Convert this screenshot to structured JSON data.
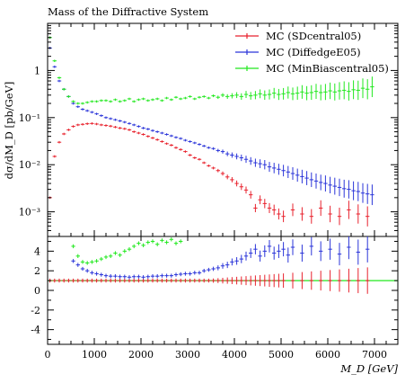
{
  "chart_data": {
    "type": "scatter",
    "title": "Mass of the Diffractive System",
    "xlabel": "M_D [GeV]",
    "ylabel": "dσ/dM_D [pb/GeV]",
    "xlim": [
      0,
      7500
    ],
    "ylim_main": [
      0.0003,
      10
    ],
    "y_scale_main": "log",
    "ylim_ratio": [
      -5.5,
      5.5
    ],
    "grid": false,
    "legend_position": "top-right",
    "x_ticks": [
      0,
      1000,
      2000,
      3000,
      4000,
      5000,
      6000,
      7000
    ],
    "x_tick_labels": [
      "0",
      "1000",
      "2000",
      "3000",
      "4000",
      "5000",
      "6000",
      "7000"
    ],
    "y_ticks_main": [
      0.001,
      0.01,
      0.1,
      1
    ],
    "y_tick_labels_main": [
      "10⁻³",
      "10⁻²",
      "10⁻¹",
      "1"
    ],
    "y_ticks_ratio": [
      -4,
      -2,
      0,
      2,
      4
    ],
    "y_tick_labels_ratio": [
      "-4",
      "-2",
      "0",
      "2",
      "4"
    ],
    "series": [
      {
        "name": "MC (SDcentral05)",
        "color": "#e8222d",
        "x": [
          50,
          150,
          250,
          350,
          450,
          550,
          650,
          750,
          850,
          950,
          1050,
          1150,
          1250,
          1350,
          1450,
          1550,
          1650,
          1750,
          1850,
          1950,
          2050,
          2150,
          2250,
          2350,
          2450,
          2550,
          2650,
          2750,
          2850,
          2950,
          3050,
          3150,
          3250,
          3350,
          3450,
          3550,
          3650,
          3750,
          3850,
          3950,
          4050,
          4150,
          4250,
          4350,
          4450,
          4550,
          4650,
          4750,
          4850,
          4950,
          5050,
          5250,
          5450,
          5650,
          5850,
          6050,
          6250,
          6450,
          6650,
          6850
        ],
        "y": [
          0.002,
          0.015,
          0.03,
          0.045,
          0.055,
          0.065,
          0.07,
          0.072,
          0.074,
          0.075,
          0.073,
          0.07,
          0.068,
          0.066,
          0.063,
          0.06,
          0.058,
          0.055,
          0.05,
          0.047,
          0.044,
          0.04,
          0.037,
          0.034,
          0.031,
          0.028,
          0.026,
          0.023,
          0.021,
          0.019,
          0.016,
          0.014,
          0.013,
          0.011,
          0.0095,
          0.0085,
          0.0075,
          0.0065,
          0.0055,
          0.0048,
          0.004,
          0.0034,
          0.0029,
          0.0023,
          0.0012,
          0.0018,
          0.0015,
          0.0012,
          0.0011,
          0.0009,
          0.0008,
          0.0011,
          0.0009,
          0.0008,
          0.0012,
          0.0009,
          0.0008,
          0.0011,
          0.0009,
          0.0008
        ]
      },
      {
        "name": "MC (DiffedgeE05)",
        "color": "#2b35d9",
        "x": [
          50,
          150,
          250,
          350,
          450,
          550,
          650,
          750,
          850,
          950,
          1050,
          1150,
          1250,
          1350,
          1450,
          1550,
          1650,
          1750,
          1850,
          1950,
          2050,
          2150,
          2250,
          2350,
          2450,
          2550,
          2650,
          2750,
          2850,
          2950,
          3050,
          3150,
          3250,
          3350,
          3450,
          3550,
          3650,
          3750,
          3850,
          3950,
          4050,
          4150,
          4250,
          4350,
          4450,
          4550,
          4650,
          4750,
          4850,
          4950,
          5050,
          5150,
          5250,
          5350,
          5450,
          5550,
          5650,
          5750,
          5850,
          5950,
          6050,
          6150,
          6250,
          6350,
          6450,
          6550,
          6650,
          6750,
          6850,
          6950
        ],
        "y": [
          3.0,
          1.2,
          0.6,
          0.4,
          0.28,
          0.2,
          0.17,
          0.15,
          0.14,
          0.13,
          0.12,
          0.11,
          0.1,
          0.095,
          0.09,
          0.085,
          0.08,
          0.075,
          0.07,
          0.065,
          0.06,
          0.057,
          0.053,
          0.05,
          0.047,
          0.044,
          0.041,
          0.038,
          0.036,
          0.033,
          0.031,
          0.029,
          0.027,
          0.025,
          0.023,
          0.022,
          0.02,
          0.019,
          0.017,
          0.016,
          0.015,
          0.014,
          0.013,
          0.012,
          0.011,
          0.0105,
          0.01,
          0.009,
          0.0085,
          0.008,
          0.0075,
          0.007,
          0.0065,
          0.006,
          0.0056,
          0.0052,
          0.0048,
          0.0045,
          0.0042,
          0.004,
          0.0037,
          0.0035,
          0.0033,
          0.0031,
          0.003,
          0.0028,
          0.0027,
          0.0025,
          0.0024,
          0.0023
        ]
      },
      {
        "name": "MC (MinBiascentral05)",
        "color": "#22e81f",
        "x": [
          50,
          150,
          250,
          350,
          450,
          550,
          650,
          750,
          850,
          950,
          1050,
          1150,
          1250,
          1350,
          1450,
          1550,
          1650,
          1750,
          1850,
          1950,
          2050,
          2150,
          2250,
          2350,
          2450,
          2550,
          2650,
          2750,
          2850,
          2950,
          3050,
          3150,
          3250,
          3350,
          3450,
          3550,
          3650,
          3750,
          3850,
          3950,
          4050,
          4150,
          4250,
          4350,
          4450,
          4550,
          4650,
          4750,
          4850,
          4950,
          5050,
          5150,
          5250,
          5350,
          5450,
          5550,
          5650,
          5750,
          5850,
          5950,
          6050,
          6150,
          6250,
          6350,
          6450,
          6550,
          6650,
          6750,
          6850,
          6950
        ],
        "y": [
          5.0,
          1.6,
          0.7,
          0.4,
          0.28,
          0.22,
          0.2,
          0.2,
          0.21,
          0.22,
          0.22,
          0.23,
          0.23,
          0.22,
          0.24,
          0.22,
          0.23,
          0.25,
          0.22,
          0.24,
          0.25,
          0.23,
          0.24,
          0.25,
          0.23,
          0.26,
          0.24,
          0.27,
          0.25,
          0.26,
          0.28,
          0.25,
          0.27,
          0.28,
          0.26,
          0.29,
          0.27,
          0.3,
          0.28,
          0.29,
          0.3,
          0.28,
          0.31,
          0.29,
          0.3,
          0.32,
          0.3,
          0.31,
          0.33,
          0.31,
          0.32,
          0.34,
          0.32,
          0.33,
          0.35,
          0.33,
          0.34,
          0.36,
          0.34,
          0.35,
          0.37,
          0.35,
          0.37,
          0.38,
          0.36,
          0.39,
          0.38,
          0.42,
          0.4,
          0.45
        ]
      }
    ],
    "ratio_series": [
      {
        "name": "MC (SDcentral05)",
        "color": "#e8222d",
        "x": [
          50,
          150,
          250,
          350,
          450,
          550,
          650,
          750,
          850,
          950,
          1050,
          1150,
          1250,
          1350,
          1450,
          1550,
          1650,
          1750,
          1850,
          1950,
          2050,
          2150,
          2250,
          2350,
          2450,
          2550,
          2650,
          2750,
          2850,
          2950,
          3050,
          3150,
          3250,
          3350,
          3450,
          3550,
          3650,
          3750,
          3850,
          3950,
          4050,
          4150,
          4250,
          4350,
          4450,
          4550,
          4650,
          4750,
          4850,
          4950,
          5050,
          5250,
          5450,
          5650,
          5850,
          6050,
          6250,
          6450,
          6650,
          6850
        ],
        "y": [
          1,
          1,
          1,
          1,
          1,
          1,
          1,
          1,
          1,
          1,
          1,
          1,
          1,
          1,
          1,
          1,
          1,
          1,
          1,
          1,
          1,
          1,
          1,
          1,
          1,
          1,
          1,
          1,
          1,
          1,
          1,
          1,
          1,
          1,
          1,
          1,
          1,
          1,
          1,
          1,
          1,
          1,
          1,
          1,
          1,
          1,
          1,
          1,
          1,
          1,
          1,
          1,
          1,
          1,
          1,
          1,
          1,
          1,
          1,
          1
        ]
      },
      {
        "name": "MC (DiffedgeE05)",
        "color": "#2b35d9",
        "x": [
          550,
          650,
          750,
          850,
          950,
          1050,
          1150,
          1250,
          1350,
          1450,
          1550,
          1650,
          1750,
          1850,
          1950,
          2050,
          2150,
          2250,
          2350,
          2450,
          2550,
          2650,
          2750,
          2850,
          2950,
          3050,
          3150,
          3250,
          3350,
          3450,
          3550,
          3650,
          3750,
          3850,
          3950,
          4050,
          4150,
          4250,
          4350,
          4450,
          4550,
          4650,
          4750,
          4850,
          4950,
          5050,
          5150,
          5250,
          5450,
          5650,
          5850,
          6050,
          6250,
          6450,
          6650,
          6850
        ],
        "y": [
          3.0,
          2.6,
          2.2,
          2.0,
          1.8,
          1.7,
          1.6,
          1.5,
          1.45,
          1.45,
          1.4,
          1.4,
          1.35,
          1.4,
          1.4,
          1.35,
          1.4,
          1.45,
          1.45,
          1.5,
          1.5,
          1.5,
          1.6,
          1.65,
          1.7,
          1.7,
          1.8,
          1.8,
          2.0,
          2.1,
          2.2,
          2.3,
          2.5,
          2.6,
          2.9,
          3.0,
          3.2,
          3.5,
          3.8,
          4.2,
          3.5,
          4.0,
          4.5,
          3.8,
          4.0,
          4.2,
          3.6,
          4.4,
          3.8,
          4.5,
          4.0,
          4.2,
          3.7,
          4.4,
          3.9,
          4.2
        ]
      },
      {
        "name": "MC (MinBiascentral05)",
        "color": "#22e81f",
        "x": [
          550,
          650,
          750,
          850,
          950,
          1050,
          1150,
          1250,
          1350,
          1450,
          1550,
          1650,
          1750,
          1850,
          1950,
          2050,
          2150,
          2250,
          2350,
          2450,
          2550,
          2650,
          2750,
          2850
        ],
        "y": [
          4.5,
          3.5,
          2.9,
          2.8,
          2.9,
          3.0,
          3.2,
          3.4,
          3.5,
          3.8,
          3.6,
          4.0,
          4.2,
          4.5,
          4.8,
          4.6,
          4.9,
          5.0,
          4.7,
          5.1,
          4.9,
          5.2,
          4.8,
          5.0
        ]
      }
    ]
  }
}
